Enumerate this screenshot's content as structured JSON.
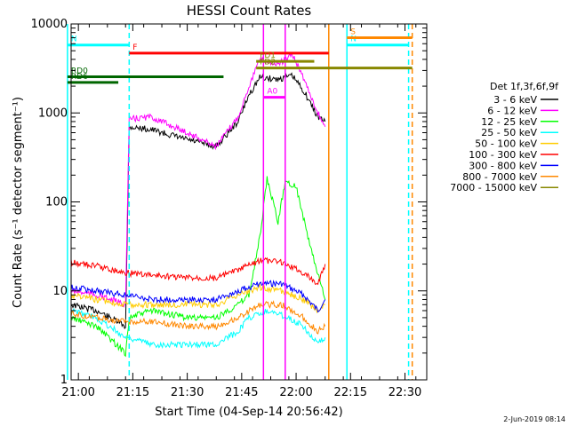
{
  "chart_data": {
    "type": "line",
    "title": "HESSI Count Rates",
    "xlabel": "Start Time (04-Sep-14 20:56:42)",
    "ylabel": "Count Rate (s⁻¹ detector segment⁻¹)",
    "yscale": "log",
    "ylim": [
      1,
      10000
    ],
    "xlim_minutes": [
      -2,
      96
    ],
    "x_ticks": [
      "21:00",
      "21:15",
      "21:30",
      "21:45",
      "22:00",
      "22:15",
      "22:30"
    ],
    "y_ticks": [
      "1",
      "10",
      "100",
      "1000",
      "10000"
    ],
    "legend_title": "Det 1f,3f,6f,9f",
    "legend_position": "right",
    "series": [
      {
        "name": "3 - 6 keV",
        "color": "#000000",
        "x": [
          "20:58",
          "21:05",
          "21:13",
          "21:14",
          "21:20",
          "21:30",
          "21:38",
          "21:44",
          "21:47",
          "21:50",
          "21:55",
          "21:59",
          "22:02",
          "22:06",
          "22:08"
        ],
        "y": [
          7,
          6,
          4,
          700,
          650,
          500,
          420,
          800,
          1600,
          2500,
          2400,
          2600,
          1800,
          900,
          800
        ]
      },
      {
        "name": "6 - 12 keV",
        "color": "#ff00ff",
        "x": [
          "20:58",
          "21:05",
          "21:13",
          "21:14",
          "21:20",
          "21:30",
          "21:38",
          "21:44",
          "21:47",
          "21:50",
          "21:55",
          "21:59",
          "22:02",
          "22:06",
          "22:08"
        ],
        "y": [
          10,
          9,
          7,
          850,
          900,
          600,
          420,
          900,
          2000,
          4000,
          3500,
          4500,
          2500,
          1000,
          700
        ]
      },
      {
        "name": "12 - 25 keV",
        "color": "#00ff00",
        "x": [
          "20:58",
          "21:05",
          "21:13",
          "21:14",
          "21:20",
          "21:30",
          "21:38",
          "21:44",
          "21:47",
          "21:50",
          "21:52",
          "21:55",
          "21:57",
          "22:00",
          "22:04",
          "22:08"
        ],
        "y": [
          5,
          4,
          2,
          5,
          6,
          5,
          5,
          7,
          9,
          40,
          180,
          60,
          170,
          150,
          30,
          8
        ]
      },
      {
        "name": "25 - 50 keV",
        "color": "#00ffff",
        "x": [
          "20:58",
          "21:05",
          "21:13",
          "21:14",
          "21:20",
          "21:30",
          "21:38",
          "21:44",
          "21:47",
          "21:52",
          "21:58",
          "22:02",
          "22:06",
          "22:08"
        ],
        "y": [
          6,
          5,
          3,
          3,
          2.5,
          2.5,
          2.5,
          3.5,
          5,
          6,
          5,
          4,
          2.5,
          3
        ]
      },
      {
        "name": "50 - 100 keV",
        "color": "#ffcc00",
        "x": [
          "20:58",
          "21:05",
          "21:13",
          "21:20",
          "21:30",
          "21:38",
          "21:44",
          "21:50",
          "21:56",
          "22:02",
          "22:06",
          "22:08"
        ],
        "y": [
          9,
          8,
          7,
          7,
          7,
          7,
          9,
          11,
          10,
          8,
          6,
          7
        ]
      },
      {
        "name": "100 - 300 keV",
        "color": "#ff0000",
        "x": [
          "20:58",
          "21:05",
          "21:13",
          "21:20",
          "21:30",
          "21:38",
          "21:44",
          "21:50",
          "21:56",
          "22:02",
          "22:06",
          "22:08"
        ],
        "y": [
          21,
          19,
          16,
          15,
          14,
          14,
          17,
          22,
          21,
          16,
          12,
          20
        ]
      },
      {
        "name": "300 - 800 keV",
        "color": "#0000ff",
        "x": [
          "20:58",
          "21:05",
          "21:13",
          "21:20",
          "21:30",
          "21:38",
          "21:44",
          "21:50",
          "21:56",
          "22:02",
          "22:06",
          "22:08"
        ],
        "y": [
          11,
          10,
          9,
          8,
          8,
          8,
          10,
          12,
          12,
          9,
          6,
          8
        ]
      },
      {
        "name": "800 - 7000 keV",
        "color": "#ff8800",
        "x": [
          "20:58",
          "21:05",
          "21:13",
          "21:20",
          "21:30",
          "21:38",
          "21:44",
          "21:50",
          "21:56",
          "22:02",
          "22:06",
          "22:08"
        ],
        "y": [
          5.5,
          5,
          4.5,
          4.5,
          4,
          4,
          5,
          7,
          7,
          5,
          3.5,
          4
        ]
      },
      {
        "name": "7000 - 15000 keV",
        "color": "#888800",
        "x": [],
        "y": []
      }
    ],
    "annotations": [
      {
        "label": "N",
        "color": "#00ffff",
        "x_start": "20:57",
        "x_end": "21:14",
        "y": 5800
      },
      {
        "label": "N",
        "color": "#00ffff",
        "x_start": "22:14",
        "x_end": "22:31",
        "y": 5800
      },
      {
        "label": "S",
        "color": "#ff8800",
        "x_start": "22:14",
        "x_end": "22:32",
        "y": 7000
      },
      {
        "label": "F",
        "color": "#ff0000",
        "x_start": "21:14",
        "x_end": "22:09",
        "y": 4700
      },
      {
        "label": "FD1",
        "color": "#888800",
        "x_start": "21:49",
        "x_end": "22:05",
        "y": 3800
      },
      {
        "label": "FD2",
        "color": "#888800",
        "x_start": "21:49",
        "x_end": "22:32",
        "y": 3200
      },
      {
        "label": "RD0",
        "color": "#006600",
        "x_start": "20:57",
        "x_end": "21:40",
        "y": 2550
      },
      {
        "label": "RD6",
        "color": "#006600",
        "x_start": "20:57",
        "x_end": "21:11",
        "y": 2200
      },
      {
        "label": "A0",
        "color": "#ff00ff",
        "x_start": "21:51",
        "x_end": "21:57",
        "y": 1500
      }
    ],
    "vertical_markers": [
      {
        "time": "20:57",
        "color": "#00ffff",
        "style": "solid"
      },
      {
        "time": "21:14",
        "color": "#00ffff",
        "style": "dashed"
      },
      {
        "time": "21:51",
        "color": "#ff00ff",
        "style": "solid"
      },
      {
        "time": "21:57",
        "color": "#ff00ff",
        "style": "solid"
      },
      {
        "time": "22:09",
        "color": "#ff8800",
        "style": "solid"
      },
      {
        "time": "22:14",
        "color": "#00ffff",
        "style": "solid"
      },
      {
        "time": "22:31",
        "color": "#00ffff",
        "style": "dashed"
      },
      {
        "time": "22:32",
        "color": "#ff8800",
        "style": "dashed"
      }
    ]
  },
  "footer": {
    "timestamp": "2-Jun-2019 08:14"
  }
}
